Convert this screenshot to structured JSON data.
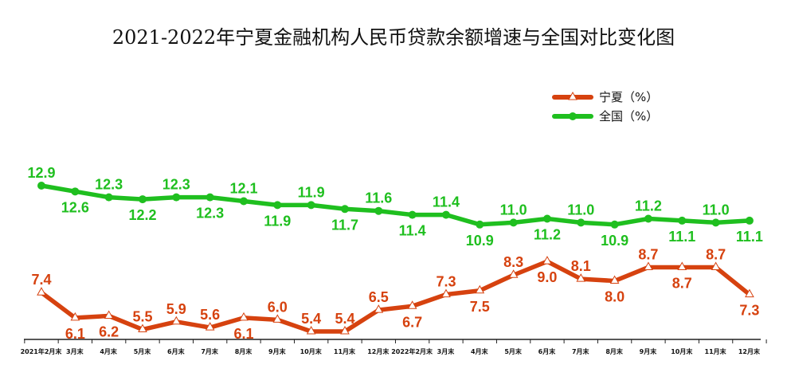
{
  "chart_data": {
    "type": "line",
    "title": "2021-2022年宁夏金融机构人民币贷款余额增速与全国对比变化图",
    "categories": [
      "2021年2月末",
      "3月末",
      "4月末",
      "5月末",
      "6月末",
      "7月末",
      "8月末",
      "9月末",
      "10月末",
      "11月末",
      "12月末",
      "2022年2月末",
      "3月末",
      "4月末",
      "5月末",
      "6月末",
      "7月末",
      "8月末",
      "9月末",
      "10月末",
      "11月末",
      "12月末"
    ],
    "series": [
      {
        "name": "宁夏（%）",
        "color": "#d6420f",
        "marker": "triangle",
        "values": [
          7.4,
          6.1,
          6.2,
          5.5,
          5.9,
          5.6,
          6.1,
          6.0,
          5.4,
          5.4,
          6.5,
          6.7,
          7.3,
          7.5,
          8.3,
          9.0,
          8.1,
          8.0,
          8.7,
          8.7,
          8.7,
          7.3
        ]
      },
      {
        "name": "全国（%）",
        "color": "#1fbf1f",
        "marker": "circle",
        "values": [
          12.9,
          12.6,
          12.3,
          12.2,
          12.3,
          12.3,
          12.1,
          11.9,
          11.9,
          11.7,
          11.6,
          11.4,
          11.4,
          10.9,
          11.0,
          11.2,
          11.0,
          10.9,
          11.2,
          11.1,
          11.0,
          11.1
        ]
      }
    ],
    "legend_position": "top-right",
    "grid": false,
    "show_y_axis": false
  }
}
